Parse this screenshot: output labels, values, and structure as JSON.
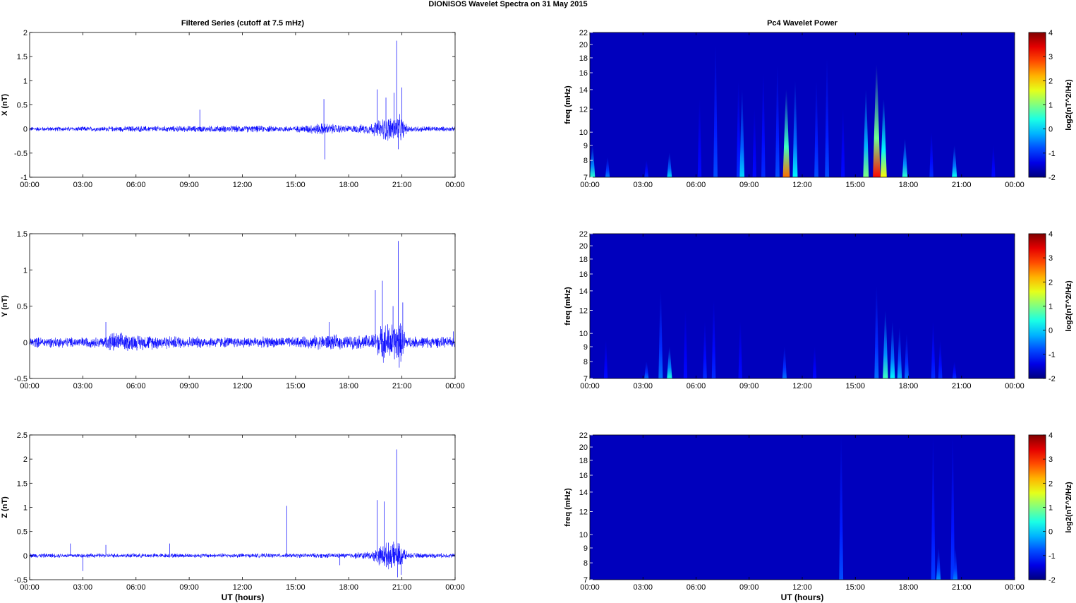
{
  "figure": {
    "suptitle": "DIONISOS Wavelet Spectra on 31 May      2015",
    "left_title": "Filtered Series (cutoff at 7.5 mHz)",
    "right_title": "Pc4 Wavelet Power"
  },
  "time_ticks": [
    "00:00",
    "03:00",
    "06:00",
    "09:00",
    "12:00",
    "15:00",
    "18:00",
    "21:00",
    "00:00"
  ],
  "xlabel": "UT (hours)",
  "colors": {
    "line": "#0000ff",
    "background": "#ffffff"
  },
  "chart_data": [
    {
      "type": "line",
      "id": "x-series",
      "ylabel": "X (nT)",
      "xlim": [
        0,
        24
      ],
      "ylim": [
        -1,
        2
      ],
      "yticks": [
        "-1",
        "-0.5",
        "0",
        "0.5",
        "1",
        "1.5",
        "2"
      ],
      "yvals": [
        -1,
        -0.5,
        0,
        0.5,
        1,
        1.5,
        2
      ],
      "noise_profile": [
        {
          "x": 0,
          "amp": 0.05
        },
        {
          "x": 4.5,
          "amp": 0.06
        },
        {
          "x": 6,
          "amp": 0.07
        },
        {
          "x": 9,
          "amp": 0.07
        },
        {
          "x": 12,
          "amp": 0.08
        },
        {
          "x": 15,
          "amp": 0.07
        },
        {
          "x": 16.5,
          "amp": 0.14
        },
        {
          "x": 18,
          "amp": 0.08
        },
        {
          "x": 19.2,
          "amp": 0.12
        },
        {
          "x": 20,
          "amp": 0.28
        },
        {
          "x": 20.9,
          "amp": 0.32
        },
        {
          "x": 21.3,
          "amp": 0.08
        },
        {
          "x": 24,
          "amp": 0.05
        }
      ],
      "peaks": [
        {
          "x": 16.6,
          "y": 0.62
        },
        {
          "x": 16.65,
          "y": -0.63
        },
        {
          "x": 19.6,
          "y": 0.82
        },
        {
          "x": 20.1,
          "y": 0.65
        },
        {
          "x": 20.55,
          "y": 0.75
        },
        {
          "x": 20.7,
          "y": 1.83
        },
        {
          "x": 20.8,
          "y": -0.42
        },
        {
          "x": 21.0,
          "y": 0.86
        },
        {
          "x": 9.6,
          "y": 0.4
        }
      ]
    },
    {
      "type": "line",
      "id": "y-series",
      "ylabel": "Y (nT)",
      "xlim": [
        0,
        24
      ],
      "ylim": [
        -0.5,
        1.5
      ],
      "yticks": [
        "-0.5",
        "0",
        "0.5",
        "1",
        "1.5"
      ],
      "yvals": [
        -0.5,
        0,
        0.5,
        1,
        1.5
      ],
      "noise_profile": [
        {
          "x": 0,
          "amp": 0.08
        },
        {
          "x": 4.2,
          "amp": 0.08
        },
        {
          "x": 4.5,
          "amp": 0.16
        },
        {
          "x": 6,
          "amp": 0.12
        },
        {
          "x": 9,
          "amp": 0.09
        },
        {
          "x": 12,
          "amp": 0.08
        },
        {
          "x": 15,
          "amp": 0.08
        },
        {
          "x": 16.8,
          "amp": 0.12
        },
        {
          "x": 18,
          "amp": 0.1
        },
        {
          "x": 19.3,
          "amp": 0.12
        },
        {
          "x": 20,
          "amp": 0.3
        },
        {
          "x": 21,
          "amp": 0.3
        },
        {
          "x": 21.3,
          "amp": 0.09
        },
        {
          "x": 24,
          "amp": 0.08
        }
      ],
      "peaks": [
        {
          "x": 4.3,
          "y": 0.28
        },
        {
          "x": 16.9,
          "y": 0.28
        },
        {
          "x": 19.5,
          "y": 0.72
        },
        {
          "x": 19.9,
          "y": 0.85
        },
        {
          "x": 20.5,
          "y": 0.5
        },
        {
          "x": 20.8,
          "y": 1.4
        },
        {
          "x": 20.85,
          "y": -0.35
        },
        {
          "x": 21.05,
          "y": 0.55
        },
        {
          "x": 23.9,
          "y": 0.15
        }
      ]
    },
    {
      "type": "line",
      "id": "z-series",
      "ylabel": "Z (nT)",
      "xlim": [
        0,
        24
      ],
      "ylim": [
        -0.5,
        2.5
      ],
      "yticks": [
        "-0.5",
        "0",
        "0.5",
        "1",
        "1.5",
        "2",
        "2.5"
      ],
      "yvals": [
        -0.5,
        0,
        0.5,
        1,
        1.5,
        2,
        2.5
      ],
      "noise_profile": [
        {
          "x": 0,
          "amp": 0.05
        },
        {
          "x": 3,
          "amp": 0.05
        },
        {
          "x": 6,
          "amp": 0.05
        },
        {
          "x": 9,
          "amp": 0.05
        },
        {
          "x": 12,
          "amp": 0.05
        },
        {
          "x": 15,
          "amp": 0.05
        },
        {
          "x": 18,
          "amp": 0.06
        },
        {
          "x": 19.3,
          "amp": 0.1
        },
        {
          "x": 20,
          "amp": 0.3
        },
        {
          "x": 21,
          "amp": 0.3
        },
        {
          "x": 21.3,
          "amp": 0.06
        },
        {
          "x": 24,
          "amp": 0.05
        }
      ],
      "peaks": [
        {
          "x": 2.3,
          "y": 0.25
        },
        {
          "x": 3.0,
          "y": -0.32
        },
        {
          "x": 4.3,
          "y": 0.22
        },
        {
          "x": 7.9,
          "y": 0.25
        },
        {
          "x": 14.5,
          "y": 1.03
        },
        {
          "x": 17.5,
          "y": -0.2
        },
        {
          "x": 19.6,
          "y": 1.15
        },
        {
          "x": 20.0,
          "y": 1.12
        },
        {
          "x": 20.7,
          "y": 2.2
        },
        {
          "x": 20.75,
          "y": -0.45
        },
        {
          "x": 20.95,
          "y": -0.4
        }
      ]
    },
    {
      "type": "heatmap",
      "id": "x-wavelet",
      "ylabel": "freq (mHz)",
      "colorbar_label": "log2(nT^2/Hz)",
      "xlim": [
        0,
        24
      ],
      "ylim": [
        7,
        22
      ],
      "yscale": "log",
      "yticks": [
        "7",
        "8",
        "9",
        "10",
        "12",
        "14",
        "16",
        "18",
        "20",
        "22"
      ],
      "yvals": [
        7,
        8,
        9,
        10,
        12,
        14,
        16,
        18,
        20,
        22
      ],
      "clim": [
        -2,
        4
      ],
      "cticks": [
        "-2",
        "-1",
        "0",
        "1",
        "2",
        "3",
        "4"
      ],
      "cvals": [
        -2,
        -1,
        0,
        1,
        2,
        3,
        4
      ],
      "streaks": [
        {
          "t": 0.15,
          "top": 9.0,
          "peak": 0.5
        },
        {
          "t": 1.0,
          "top": 8.2,
          "peak": -0.5
        },
        {
          "t": 3.2,
          "top": 8.0,
          "peak": -1.0
        },
        {
          "t": 4.5,
          "top": 8.5,
          "peak": 0.0
        },
        {
          "t": 6.2,
          "top": 13.0,
          "peak": -1.2
        },
        {
          "t": 7.1,
          "top": 20.0,
          "peak": -0.8
        },
        {
          "t": 8.4,
          "top": 15.0,
          "peak": -1.0
        },
        {
          "t": 8.6,
          "top": 14.0,
          "peak": 0.0
        },
        {
          "t": 9.3,
          "top": 12.0,
          "peak": -1.2
        },
        {
          "t": 9.8,
          "top": 16.0,
          "peak": -1.0
        },
        {
          "t": 10.6,
          "top": 17.0,
          "peak": -0.8
        },
        {
          "t": 11.1,
          "top": 14.0,
          "peak": 2.6
        },
        {
          "t": 11.6,
          "top": 15.0,
          "peak": 0.2
        },
        {
          "t": 12.8,
          "top": 15.0,
          "peak": -0.8
        },
        {
          "t": 13.4,
          "top": 18.0,
          "peak": -0.8
        },
        {
          "t": 14.3,
          "top": 12.0,
          "peak": -1.2
        },
        {
          "t": 15.6,
          "top": 14.0,
          "peak": 1.0
        },
        {
          "t": 16.2,
          "top": 17.0,
          "peak": 3.2
        },
        {
          "t": 16.6,
          "top": 13.0,
          "peak": 1.8
        },
        {
          "t": 17.8,
          "top": 9.5,
          "peak": 0.5
        },
        {
          "t": 19.3,
          "top": 10.0,
          "peak": -1.0
        },
        {
          "t": 20.6,
          "top": 9.0,
          "peak": 0.3
        },
        {
          "t": 22.8,
          "top": 9.0,
          "peak": -1.2
        }
      ]
    },
    {
      "type": "heatmap",
      "id": "y-wavelet",
      "ylabel": "freq (mHz)",
      "colorbar_label": "log2(nT^2/Hz)",
      "xlim": [
        0,
        24
      ],
      "ylim": [
        7,
        22
      ],
      "yscale": "log",
      "yticks": [
        "7",
        "8",
        "9",
        "10",
        "12",
        "14",
        "16",
        "18",
        "20",
        "22"
      ],
      "yvals": [
        7,
        8,
        9,
        10,
        12,
        14,
        16,
        18,
        20,
        22
      ],
      "clim": [
        -2,
        4
      ],
      "cticks": [
        "-2",
        "-1",
        "0",
        "1",
        "2",
        "3",
        "4"
      ],
      "cvals": [
        -2,
        -1,
        0,
        1,
        2,
        3,
        4
      ],
      "streaks": [
        {
          "t": 0.9,
          "top": 9.5,
          "peak": -1.2
        },
        {
          "t": 3.2,
          "top": 8.0,
          "peak": -0.6
        },
        {
          "t": 4.0,
          "top": 14.0,
          "peak": -0.6
        },
        {
          "t": 4.5,
          "top": 9.0,
          "peak": 0.4
        },
        {
          "t": 5.4,
          "top": 12.0,
          "peak": -1.2
        },
        {
          "t": 6.5,
          "top": 11.0,
          "peak": -1.0
        },
        {
          "t": 7.0,
          "top": 13.0,
          "peak": -1.0
        },
        {
          "t": 8.5,
          "top": 11.0,
          "peak": -1.2
        },
        {
          "t": 11.0,
          "top": 9.0,
          "peak": -0.6
        },
        {
          "t": 12.7,
          "top": 9.0,
          "peak": -1.2
        },
        {
          "t": 16.2,
          "top": 14.5,
          "peak": -0.6
        },
        {
          "t": 16.7,
          "top": 12.0,
          "peak": 0.6
        },
        {
          "t": 17.1,
          "top": 11.0,
          "peak": 0.2
        },
        {
          "t": 17.5,
          "top": 10.5,
          "peak": -0.2
        },
        {
          "t": 17.9,
          "top": 10.0,
          "peak": -0.6
        },
        {
          "t": 19.4,
          "top": 11.0,
          "peak": -1.0
        },
        {
          "t": 19.8,
          "top": 9.5,
          "peak": -1.0
        },
        {
          "t": 20.6,
          "top": 8.0,
          "peak": -1.0
        }
      ]
    },
    {
      "type": "heatmap",
      "id": "z-wavelet",
      "ylabel": "freq (mHz)",
      "colorbar_label": "log2(nT^2/Hz)",
      "xlim": [
        0,
        24
      ],
      "ylim": [
        7,
        22
      ],
      "yscale": "log",
      "yticks": [
        "7",
        "8",
        "9",
        "10",
        "12",
        "14",
        "16",
        "18",
        "20",
        "22"
      ],
      "yvals": [
        7,
        8,
        9,
        10,
        12,
        14,
        16,
        18,
        20,
        22
      ],
      "clim": [
        -2,
        4
      ],
      "cticks": [
        "-2",
        "-1",
        "0",
        "1",
        "2",
        "3",
        "4"
      ],
      "cvals": [
        -2,
        -1,
        0,
        1,
        2,
        3,
        4
      ],
      "streaks": [
        {
          "t": 14.2,
          "top": 22.0,
          "peak": -0.8
        },
        {
          "t": 19.4,
          "top": 22.0,
          "peak": -0.9
        },
        {
          "t": 19.7,
          "top": 9.0,
          "peak": -0.4
        },
        {
          "t": 20.5,
          "top": 22.0,
          "peak": -0.9
        },
        {
          "t": 20.65,
          "top": 9.0,
          "peak": -0.5
        }
      ]
    }
  ]
}
